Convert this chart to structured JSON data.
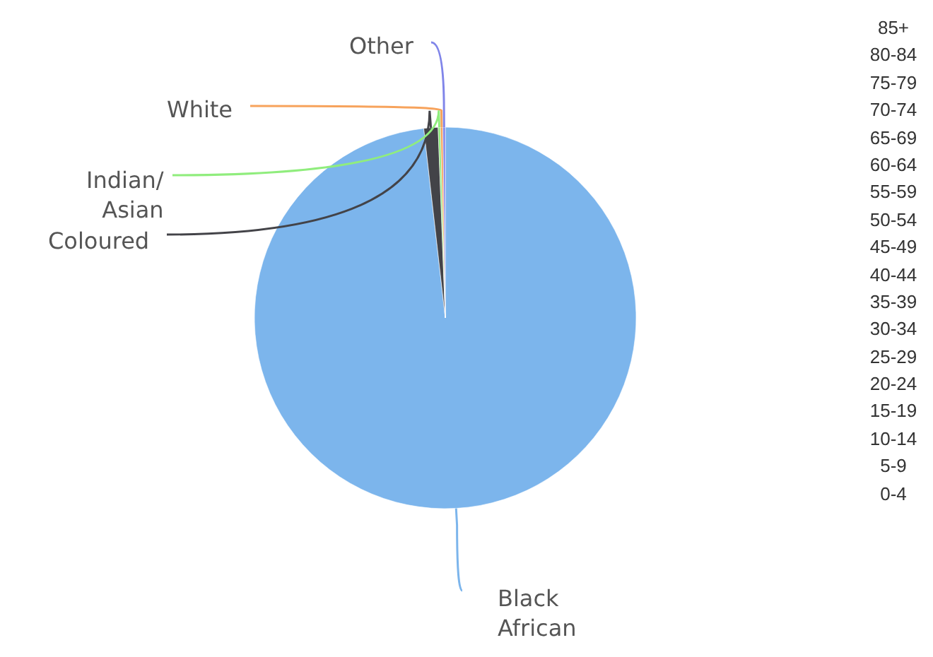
{
  "chart_data": [
    {
      "type": "pie",
      "categories": [
        "Black African",
        "Coloured",
        "Indian/Asian",
        "White",
        "Other"
      ],
      "values": [
        98.2,
        1.2,
        0.2,
        0.2,
        0.2
      ],
      "colors": [
        "#7cb5ec",
        "#434348",
        "#90ed7d",
        "#f7a35c",
        "#8085e9"
      ],
      "legend": false
    },
    {
      "type": "other",
      "categories": [
        "85+",
        "80-84",
        "75-79",
        "70-74",
        "65-69",
        "60-64",
        "55-59",
        "50-54",
        "45-49",
        "40-44",
        "35-39",
        "30-34",
        "25-29",
        "20-24",
        "15-19",
        "10-14",
        "5-9",
        "0-4"
      ]
    }
  ]
}
